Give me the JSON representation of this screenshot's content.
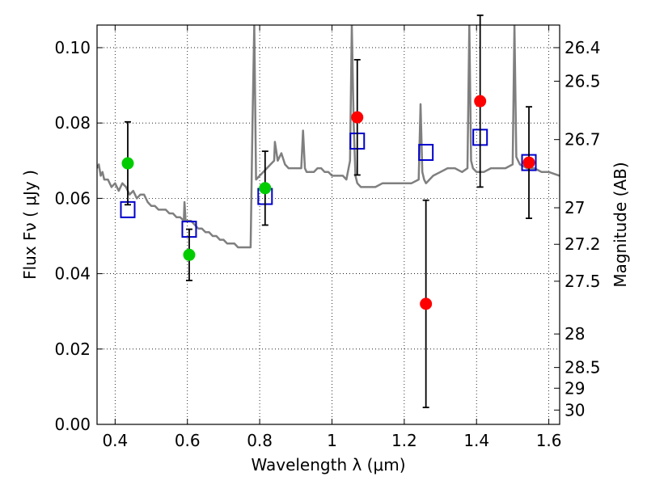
{
  "chart_data": {
    "type": "scatter",
    "title": "",
    "xlabel": "Wavelength  λ (μm)",
    "ylabel": "Flux  Fν  ( μJy )",
    "ylabel_right": "Magnitude (AB)",
    "xlim": [
      0.35,
      1.63
    ],
    "ylim": [
      0.0,
      0.106
    ],
    "grid": true,
    "x_ticks": [
      {
        "value": 0.4,
        "label": "0.4"
      },
      {
        "value": 0.6,
        "label": "0.6"
      },
      {
        "value": 0.8,
        "label": "0.8"
      },
      {
        "value": 1.0,
        "label": "1"
      },
      {
        "value": 1.2,
        "label": "1.2"
      },
      {
        "value": 1.4,
        "label": "1.4"
      },
      {
        "value": 1.6,
        "label": "1.6"
      }
    ],
    "y_ticks": [
      {
        "value": 0.0,
        "label": "0.00"
      },
      {
        "value": 0.02,
        "label": "0.02"
      },
      {
        "value": 0.04,
        "label": "0.04"
      },
      {
        "value": 0.06,
        "label": "0.06"
      },
      {
        "value": 0.08,
        "label": "0.08"
      },
      {
        "value": 0.1,
        "label": "0.10"
      }
    ],
    "magnitude_ticks": [
      {
        "flux": 0.1,
        "label": "26.4"
      },
      {
        "flux": 0.0911,
        "label": "26.5"
      },
      {
        "flux": 0.0756,
        "label": "26.7"
      },
      {
        "flux": 0.0575,
        "label": "27"
      },
      {
        "flux": 0.0478,
        "label": "27.2"
      },
      {
        "flux": 0.038,
        "label": "27.5"
      },
      {
        "flux": 0.024,
        "label": "28"
      },
      {
        "flux": 0.0151,
        "label": "28.5"
      },
      {
        "flux": 0.0096,
        "label": "29"
      },
      {
        "flux": 0.0038,
        "label": "30"
      }
    ],
    "series": [
      {
        "name": "model-spectrum",
        "style": "line",
        "color": "#7f7f7f",
        "x": [
          0.35,
          0.355,
          0.36,
          0.365,
          0.37,
          0.38,
          0.39,
          0.4,
          0.41,
          0.42,
          0.43,
          0.44,
          0.45,
          0.46,
          0.47,
          0.48,
          0.49,
          0.5,
          0.51,
          0.52,
          0.53,
          0.54,
          0.55,
          0.56,
          0.57,
          0.58,
          0.59,
          0.592,
          0.595,
          0.6,
          0.61,
          0.62,
          0.63,
          0.64,
          0.65,
          0.66,
          0.67,
          0.68,
          0.69,
          0.7,
          0.71,
          0.72,
          0.73,
          0.74,
          0.75,
          0.76,
          0.77,
          0.775,
          0.78,
          0.785,
          0.79,
          0.8,
          0.81,
          0.82,
          0.83,
          0.84,
          0.842,
          0.85,
          0.86,
          0.87,
          0.88,
          0.9,
          0.915,
          0.92,
          0.925,
          0.93,
          0.94,
          0.95,
          0.96,
          0.97,
          0.98,
          0.99,
          1.0,
          1.01,
          1.03,
          1.04,
          1.05,
          1.055,
          1.06,
          1.065,
          1.07,
          1.08,
          1.09,
          1.1,
          1.12,
          1.14,
          1.16,
          1.18,
          1.2,
          1.22,
          1.24,
          1.245,
          1.25,
          1.255,
          1.26,
          1.28,
          1.3,
          1.32,
          1.34,
          1.36,
          1.375,
          1.38,
          1.385,
          1.39,
          1.4,
          1.42,
          1.44,
          1.46,
          1.48,
          1.5,
          1.505,
          1.51,
          1.52,
          1.54,
          1.56,
          1.58,
          1.6,
          1.63
        ],
        "y": [
          0.068,
          0.069,
          0.066,
          0.067,
          0.065,
          0.065,
          0.063,
          0.064,
          0.062,
          0.064,
          0.063,
          0.061,
          0.062,
          0.06,
          0.061,
          0.061,
          0.059,
          0.058,
          0.058,
          0.057,
          0.057,
          0.057,
          0.056,
          0.056,
          0.055,
          0.055,
          0.054,
          0.059,
          0.054,
          0.054,
          0.054,
          0.053,
          0.052,
          0.052,
          0.051,
          0.051,
          0.05,
          0.05,
          0.049,
          0.049,
          0.048,
          0.048,
          0.048,
          0.047,
          0.047,
          0.047,
          0.047,
          0.047,
          0.08,
          0.106,
          0.065,
          0.066,
          0.067,
          0.068,
          0.069,
          0.07,
          0.075,
          0.07,
          0.072,
          0.069,
          0.068,
          0.068,
          0.068,
          0.078,
          0.068,
          0.067,
          0.067,
          0.067,
          0.068,
          0.068,
          0.067,
          0.067,
          0.066,
          0.066,
          0.066,
          0.065,
          0.07,
          0.106,
          0.08,
          0.066,
          0.064,
          0.063,
          0.063,
          0.063,
          0.063,
          0.064,
          0.064,
          0.064,
          0.064,
          0.064,
          0.065,
          0.085,
          0.067,
          0.065,
          0.064,
          0.066,
          0.067,
          0.068,
          0.068,
          0.067,
          0.068,
          0.106,
          0.07,
          0.068,
          0.067,
          0.067,
          0.068,
          0.068,
          0.068,
          0.069,
          0.106,
          0.071,
          0.069,
          0.068,
          0.068,
          0.067,
          0.067,
          0.066
        ]
      },
      {
        "name": "model-photometry",
        "style": "open-square",
        "color": "#0000cc",
        "x": [
          0.435,
          0.605,
          0.815,
          1.07,
          1.26,
          1.41,
          1.545
        ],
        "y": [
          0.057,
          0.0518,
          0.0605,
          0.0752,
          0.0722,
          0.0762,
          0.0695
        ]
      },
      {
        "name": "observed-green",
        "style": "filled-circle",
        "color": "#00cc00",
        "x": [
          0.435,
          0.605,
          0.815
        ],
        "y": [
          0.0693,
          0.045,
          0.0627
        ],
        "err": [
          0.011,
          0.0068,
          0.0098
        ]
      },
      {
        "name": "observed-red",
        "style": "filled-circle",
        "color": "#ff0000",
        "x": [
          1.07,
          1.26,
          1.41,
          1.545
        ],
        "y": [
          0.0815,
          0.032,
          0.0858,
          0.0695
        ],
        "err": [
          0.0153,
          0.0275,
          0.0228,
          0.0148
        ]
      }
    ]
  }
}
